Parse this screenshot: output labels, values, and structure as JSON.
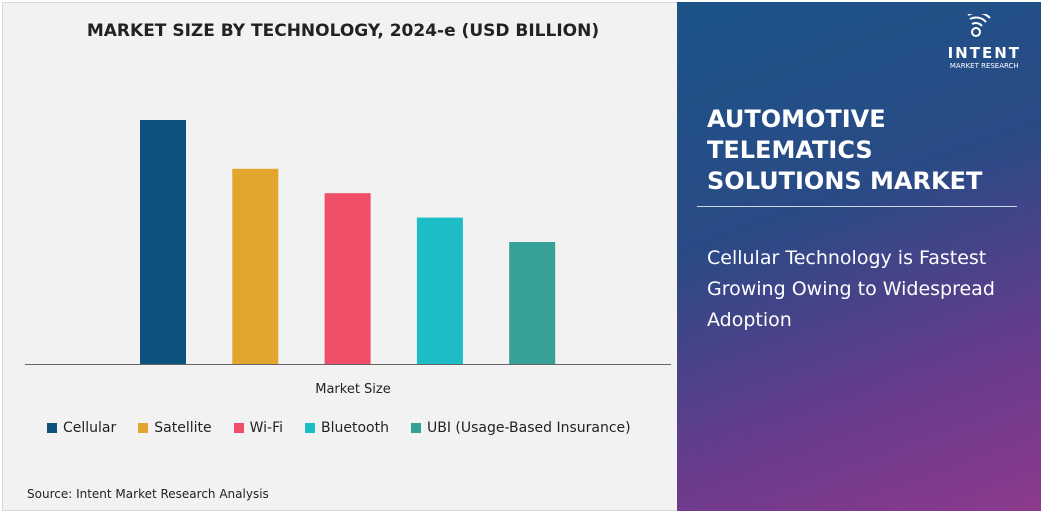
{
  "chart_data": {
    "type": "bar",
    "title": "MARKET SIZE BY TECHNOLOGY, 2024-e (USD BILLION)",
    "xlabel": "Market Size",
    "ylabel": "",
    "categories": [
      "Cellular",
      "Satellite",
      "Wi-Fi",
      "Bluetooth",
      "UBI (Usage-Based Insurance)"
    ],
    "values": [
      100,
      80,
      70,
      60,
      50
    ],
    "ylim": [
      0,
      100
    ],
    "grid": false,
    "legend_placement": "bottom",
    "colors": [
      "#0c527c",
      "#e2a52e",
      "#f04e68",
      "#1dbdc7",
      "#36a196"
    ]
  },
  "source": "Source: Intent Market Research Analysis",
  "side": {
    "logo": {
      "name": "INTENT",
      "tagline": "MARKET RESEARCH",
      "tm": "TM"
    },
    "title": "AUTOMOTIVE TELEMATICS SOLUTIONS MARKET",
    "subtitle": "Cellular Technology is Fastest Growing Owing to Widespread Adoption"
  }
}
